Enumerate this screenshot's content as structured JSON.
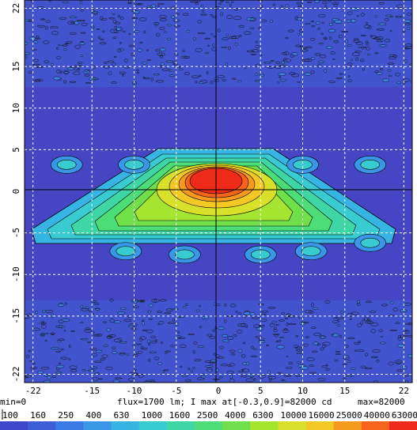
{
  "chart_data": {
    "type": "heatmap",
    "title": "",
    "xlabel": "",
    "ylabel": "",
    "xlim": [
      -23,
      23
    ],
    "ylim": [
      -23,
      23
    ],
    "x_ticks": [
      -22,
      -15,
      -10,
      -5,
      0,
      5,
      10,
      15,
      22
    ],
    "y_ticks": [
      22,
      15,
      10,
      5,
      0,
      -5,
      -10,
      -15,
      -22
    ],
    "grid": true,
    "min_label": "min=0",
    "flux_label": "flux=1700 lm; I max at[-0.3,0.9]=82000 cd",
    "max_label": "max=82000",
    "max_location": [
      -0.3,
      0.9
    ],
    "max_value": 82000,
    "colorbar_levels": [
      "100",
      "160",
      "250",
      "400",
      "630",
      "1000",
      "1600",
      "2500",
      "4000",
      "6300",
      "10000",
      "16000",
      "25000",
      "40000",
      "63000"
    ],
    "colorbar_colors": [
      "#3f48c8",
      "#3e5ed6",
      "#3a7ae4",
      "#3a97e8",
      "#36b4e4",
      "#38cbd0",
      "#3ed6a4",
      "#4cdc78",
      "#70e04a",
      "#a6e432",
      "#d8e02a",
      "#f4c824",
      "#f69a1e",
      "#f4641a",
      "#ee2a1a"
    ],
    "background_color": "#4646c4",
    "features": {
      "central_peak": {
        "x": -0.3,
        "y": 0.9,
        "value": 82000
      },
      "hotspots": [
        [
          -18,
          3.2
        ],
        [
          -10,
          3.2
        ],
        [
          10,
          3.2
        ],
        [
          18,
          3.2
        ],
        [
          -11,
          -7.2
        ],
        [
          -4,
          -7.6
        ],
        [
          5,
          -7.6
        ],
        [
          11,
          -7.2
        ],
        [
          18,
          -6.2
        ]
      ],
      "noise_bands_y": [
        [
          13,
          23
        ],
        [
          -23,
          -13
        ]
      ]
    }
  }
}
